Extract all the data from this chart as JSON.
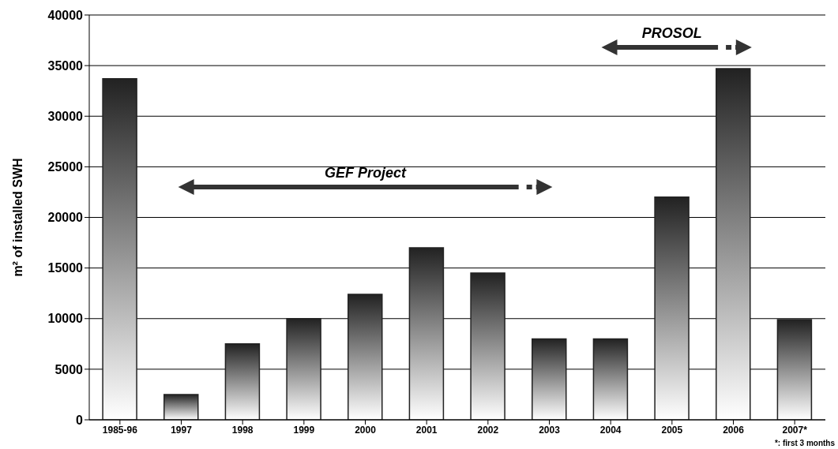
{
  "chart_data": {
    "type": "bar",
    "ylabel": "m² of installed SWH",
    "categories": [
      "1985-96",
      "1997",
      "1998",
      "1999",
      "2000",
      "2001",
      "2002",
      "2003",
      "2004",
      "2005",
      "2006",
      "2007*"
    ],
    "values": [
      33700,
      2500,
      7500,
      10000,
      12400,
      17000,
      14500,
      8000,
      8000,
      22000,
      34700,
      9900
    ],
    "color": "#222222",
    "ylim": [
      0,
      40000
    ],
    "yticks": [
      0,
      5000,
      10000,
      15000,
      20000,
      25000,
      30000,
      35000,
      40000
    ],
    "grid": "y",
    "annotations": [
      "GEF Project",
      "PROSOL",
      "*: first 3 months"
    ]
  }
}
